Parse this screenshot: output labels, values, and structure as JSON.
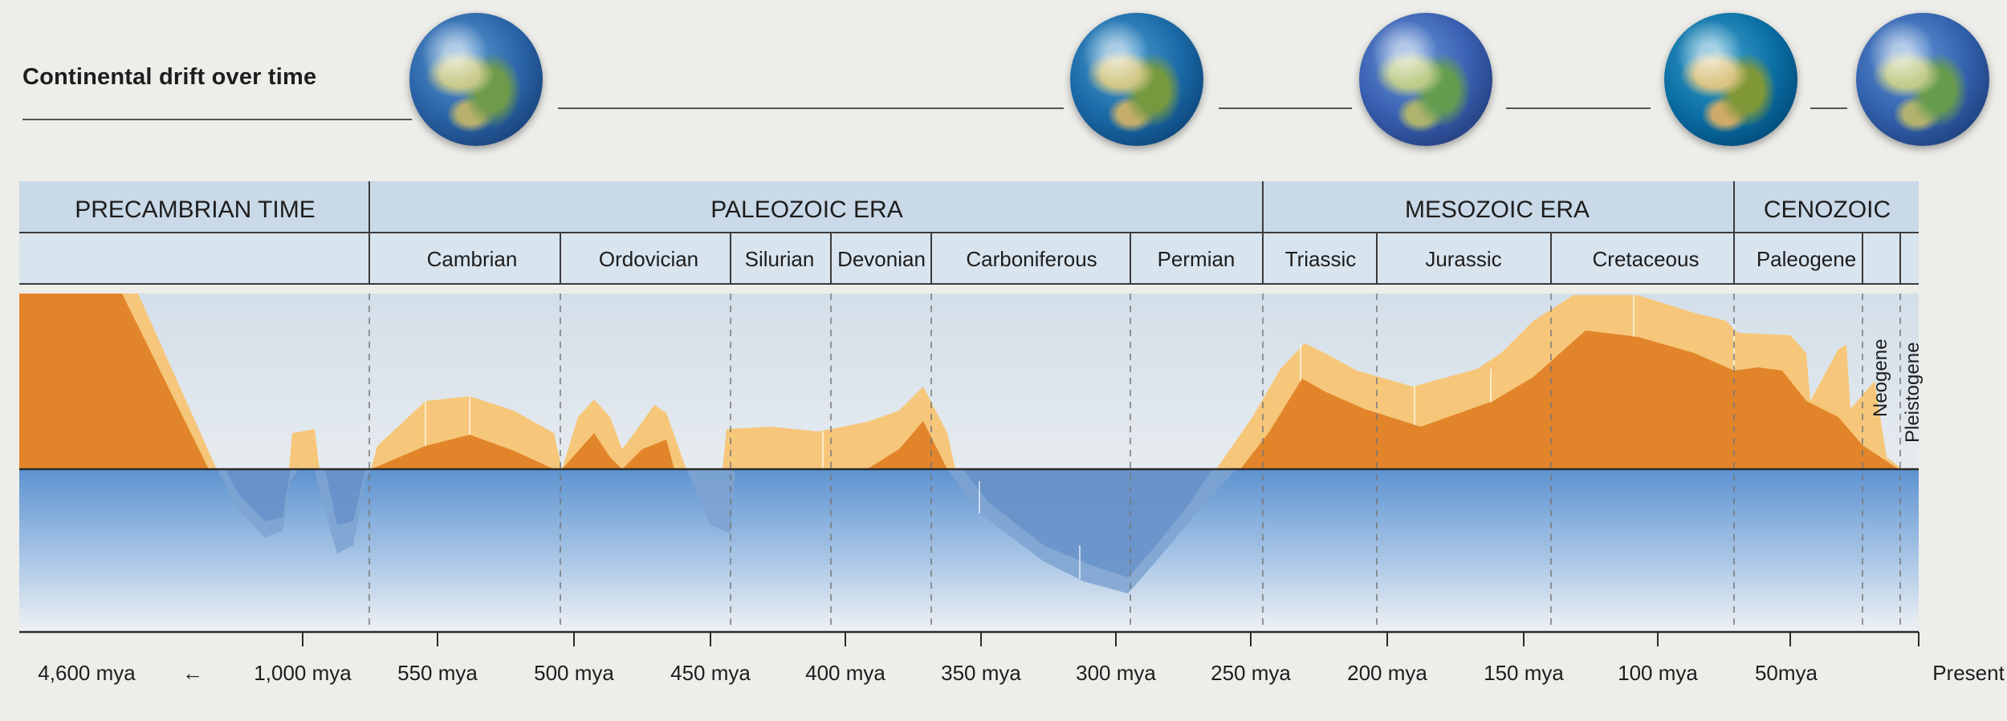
{
  "drift": {
    "title": "Continental drift over time",
    "globes": [
      {
        "name": "globe-1",
        "icon": "earth-globe-icon"
      },
      {
        "name": "globe-2",
        "icon": "earth-globe-icon"
      },
      {
        "name": "globe-3",
        "icon": "earth-globe-icon"
      },
      {
        "name": "globe-4",
        "icon": "earth-globe-icon"
      },
      {
        "name": "globe-5",
        "icon": "earth-globe-icon"
      }
    ]
  },
  "eras": [
    {
      "label": "PRECAMBRIAN TIME"
    },
    {
      "label": "PALEOZOIC ERA"
    },
    {
      "label": "MESOZOIC ERA"
    },
    {
      "label": "CENOZOIC"
    }
  ],
  "periods": [
    {
      "label": "Cambrian"
    },
    {
      "label": "Ordovician"
    },
    {
      "label": "Silurian"
    },
    {
      "label": "Devonian"
    },
    {
      "label": "Carboniferous"
    },
    {
      "label": "Permian"
    },
    {
      "label": "Triassic"
    },
    {
      "label": "Jurassic"
    },
    {
      "label": "Cretaceous"
    },
    {
      "label": "Paleogene"
    },
    {
      "label": "Neogene"
    },
    {
      "label": "Pleistogene"
    }
  ],
  "axis": {
    "ticks": [
      "4,600 mya",
      "1,000 mya",
      "550 mya",
      "500 mya",
      "450 mya",
      "400 mya",
      "350 mya",
      "300 mya",
      "250 mya",
      "200 mya",
      "150 mya",
      "100 mya",
      "50mya",
      "Present"
    ],
    "arrow": "←"
  },
  "colors": {
    "land": "#e2852a",
    "land_light": "#f6c77a",
    "sea": "#6f9bd0",
    "header": "#c9d9e7"
  }
}
